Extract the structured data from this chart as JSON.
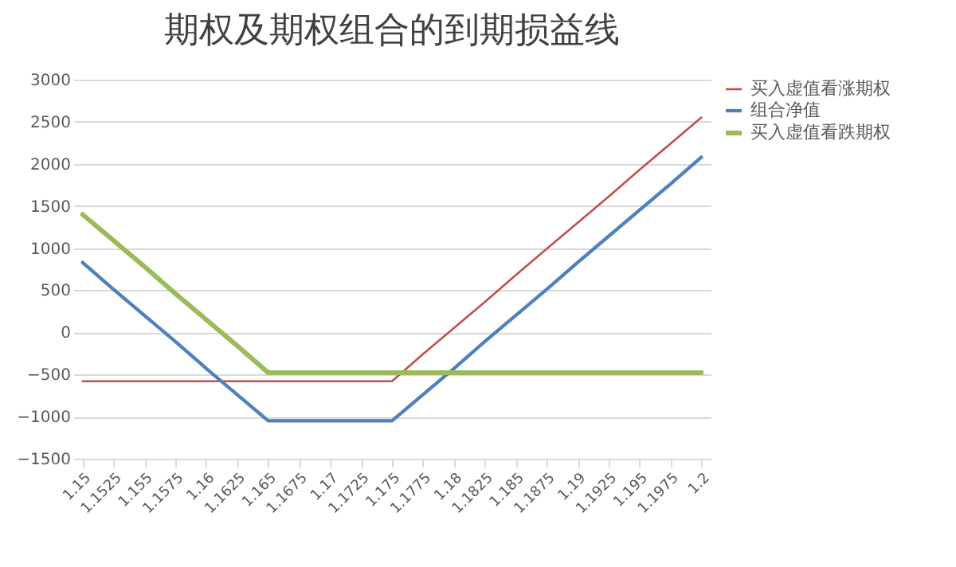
{
  "chart_data": {
    "type": "line",
    "title": "期权及期权组合的到期损益线",
    "categories": [
      "1.15",
      "1.1525",
      "1.155",
      "1.1575",
      "1.16",
      "1.1625",
      "1.165",
      "1.1675",
      "1.17",
      "1.1725",
      "1.175",
      "1.1775",
      "1.18",
      "1.1825",
      "1.185",
      "1.1875",
      "1.19",
      "1.1925",
      "1.195",
      "1.1975",
      "1.2"
    ],
    "series": [
      {
        "name": "买入虚值看涨期权",
        "color": "#c0504d",
        "values": [
          -580,
          -580,
          -580,
          -580,
          -580,
          -580,
          -580,
          -580,
          -580,
          -580,
          -580,
          -260,
          50,
          360,
          680,
          990,
          1300,
          1610,
          1930,
          2240,
          2550
        ]
      },
      {
        "name": "组合净值",
        "color": "#4f81bd",
        "values": [
          830,
          510,
          200,
          -110,
          -430,
          -740,
          -1050,
          -1050,
          -1050,
          -1050,
          -1050,
          -740,
          -430,
          -110,
          200,
          510,
          830,
          1140,
          1450,
          1760,
          2080
        ]
      },
      {
        "name": "买入虚值看跌期权",
        "color": "#9bbb59",
        "values": [
          1400,
          1090,
          780,
          460,
          150,
          -160,
          -480,
          -480,
          -480,
          -480,
          -480,
          -480,
          -480,
          -480,
          -480,
          -480,
          -480,
          -480,
          -480,
          -480,
          -480
        ]
      }
    ],
    "ylim": [
      -1500,
      3000
    ],
    "yticks": [
      -1500,
      -1000,
      -500,
      0,
      500,
      1000,
      1500,
      2000,
      2500,
      3000
    ],
    "grid": "y",
    "legend": "top right",
    "marker": "none",
    "line_style": "solid"
  }
}
